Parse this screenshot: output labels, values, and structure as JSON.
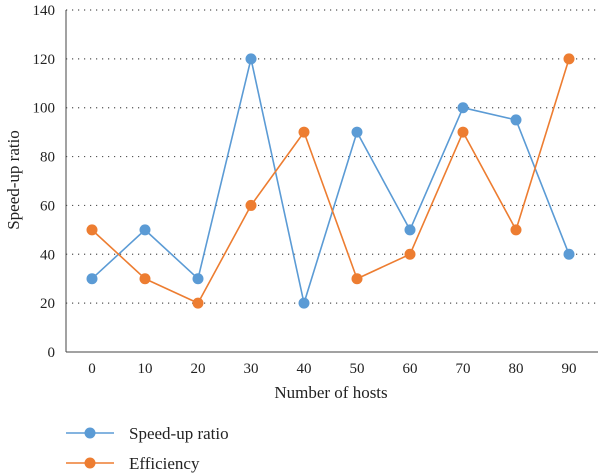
{
  "chart_data": {
    "type": "line",
    "xlabel": "Number of hosts",
    "ylabel": "Speed-up ratio",
    "x": [
      0,
      10,
      20,
      30,
      40,
      50,
      60,
      70,
      80,
      90
    ],
    "x_tick_labels": [
      "0",
      "10",
      "20",
      "30",
      "40",
      "50",
      "60",
      "70",
      "80",
      "90"
    ],
    "ylim": [
      0,
      140
    ],
    "y_ticks": [
      0,
      20,
      40,
      60,
      80,
      100,
      120,
      140
    ],
    "y_tick_labels": [
      "0",
      "20",
      "40",
      "60",
      "80",
      "100",
      "120",
      "140"
    ],
    "grid": "horizontal-dotted",
    "legend_position": "bottom-left",
    "series": [
      {
        "name": "Speed-up ratio",
        "color": "#5b9bd5",
        "values": [
          30,
          50,
          30,
          120,
          20,
          90,
          50,
          100,
          95,
          40
        ]
      },
      {
        "name": "Efficiency",
        "color": "#ed7d31",
        "values": [
          50,
          30,
          20,
          60,
          90,
          30,
          40,
          90,
          50,
          120
        ]
      }
    ]
  }
}
